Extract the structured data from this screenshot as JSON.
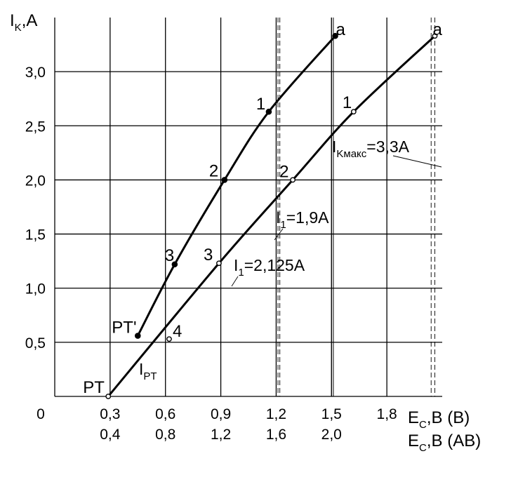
{
  "chart_data": {
    "type": "line",
    "title": "",
    "ylabel": {
      "main": "I",
      "sub": "K",
      "rest": ",A"
    },
    "xlabels": [
      {
        "main": "E",
        "sub": "C",
        "rest": ",B (B)"
      },
      {
        "main": "E",
        "sub": "C",
        "rest": ",B (AB)"
      }
    ],
    "origin_label": "0",
    "xlim": [
      0,
      2.1
    ],
    "ylim": [
      0,
      3.5
    ],
    "grid": true,
    "y_ticks": [
      {
        "v": 0.5,
        "label": "0,5"
      },
      {
        "v": 1.0,
        "label": "1,0"
      },
      {
        "v": 1.5,
        "label": "1,5"
      },
      {
        "v": 2.0,
        "label": "2,0"
      },
      {
        "v": 2.5,
        "label": "2,5"
      },
      {
        "v": 3.0,
        "label": "3,0"
      }
    ],
    "x_ticks_row1": [
      {
        "v": 0.3,
        "label": "0,3"
      },
      {
        "v": 0.6,
        "label": "0,6"
      },
      {
        "v": 0.9,
        "label": "0,9"
      },
      {
        "v": 1.2,
        "label": "1,2"
      },
      {
        "v": 1.5,
        "label": "1,5"
      },
      {
        "v": 1.8,
        "label": "1,8"
      }
    ],
    "x_ticks_row2": [
      {
        "v": 0.3,
        "label": "0,4"
      },
      {
        "v": 0.6,
        "label": "0,8"
      },
      {
        "v": 0.9,
        "label": "1,2"
      },
      {
        "v": 1.2,
        "label": "1,6"
      },
      {
        "v": 1.5,
        "label": "2,0"
      }
    ],
    "series": [
      {
        "marker": "filled",
        "points": [
          {
            "x": 0.45,
            "y": 0.56,
            "label": "PT'"
          },
          {
            "x": 0.65,
            "y": 1.22,
            "label": "3"
          },
          {
            "x": 0.92,
            "y": 2.0,
            "label": "2"
          },
          {
            "x": 1.16,
            "y": 2.63,
            "label": "1"
          },
          {
            "x": 1.52,
            "y": 3.33,
            "label": "a"
          }
        ]
      },
      {
        "marker": "open",
        "points": [
          {
            "x": 0.29,
            "y": 0.0,
            "label": "PT"
          },
          {
            "x": 0.89,
            "y": 1.23,
            "label": "3"
          },
          {
            "x": 1.29,
            "y": 2.0,
            "label": "2"
          },
          {
            "x": 1.62,
            "y": 2.63,
            "label": "1"
          },
          {
            "x": 2.06,
            "y": 3.33,
            "label": "a"
          }
        ]
      }
    ],
    "extra_point": {
      "x": 0.62,
      "y": 0.53,
      "label": "4"
    },
    "vertical_lines": [
      {
        "x": 1.5,
        "style": "solid"
      },
      {
        "x": 1.51,
        "style": "solid"
      },
      {
        "x": 1.21,
        "style": "dashed"
      },
      {
        "x": 1.22,
        "style": "dashed"
      },
      {
        "x": 2.04,
        "style": "dashed"
      },
      {
        "x": 2.06,
        "style": "dashed"
      }
    ],
    "annotations": [
      {
        "main": "I",
        "sub": "Kмакс",
        "rest": "=3,3A"
      },
      {
        "main": "I",
        "sub": "1",
        "rest": "=1,9A"
      },
      {
        "main": "I",
        "sub": "1",
        "rest": "=2,125A"
      },
      {
        "main": "I",
        "sub": "PT",
        "rest": ""
      }
    ]
  }
}
